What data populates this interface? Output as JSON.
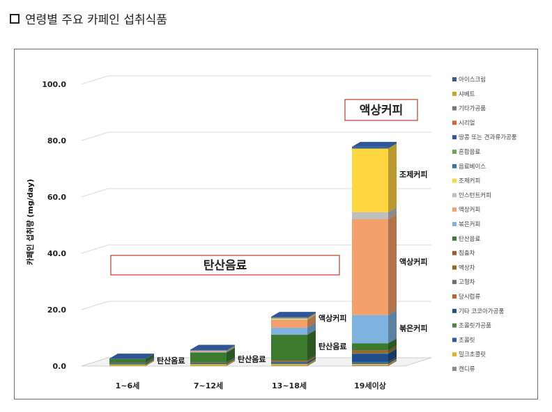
{
  "heading": {
    "text": "연령별 주요 카페인 섭취식품"
  },
  "chart_data": {
    "type": "bar",
    "stacked": true,
    "style": "3d-column",
    "ylabel": "카페인 섭취량 (mg/day)",
    "xlabel": "",
    "ylim": [
      0,
      100
    ],
    "yticks": [
      "0.0",
      "20.0",
      "40.0",
      "60.0",
      "80.0",
      "100.0"
    ],
    "grid": true,
    "legend_position": "right",
    "categories": [
      "1~6세",
      "7~12세",
      "13~18세",
      "19세이상"
    ],
    "series": [
      {
        "name": "캔디류",
        "color": "#8c8c8c",
        "values": [
          0.1,
          0.1,
          0.2,
          0.3
        ]
      },
      {
        "name": "밀크초콜릿",
        "color": "#e3b422",
        "values": [
          0.5,
          0.6,
          0.6,
          0.5
        ]
      },
      {
        "name": "초콜릿",
        "color": "#2a56a8",
        "values": [
          0.3,
          0.3,
          0.5,
          0.5
        ]
      },
      {
        "name": "초콜릿가공품",
        "color": "#4f8a3b",
        "values": [
          0.1,
          0.1,
          0.1,
          0.1
        ]
      },
      {
        "name": "기타 코코아가공품",
        "color": "#1f4e8c",
        "values": [
          0.1,
          0.1,
          0.1,
          3.0
        ]
      },
      {
        "name": "당시럽류",
        "color": "#c0622d",
        "values": [
          0,
          0,
          0,
          0
        ]
      },
      {
        "name": "고형차",
        "color": "#6e6e6e",
        "values": [
          0,
          0,
          0.1,
          0.2
        ]
      },
      {
        "name": "액상차",
        "color": "#8c6b1a",
        "values": [
          0,
          0,
          0.2,
          0.5
        ]
      },
      {
        "name": "침출차",
        "color": "#9d5a2b",
        "values": [
          0.1,
          0.1,
          0.3,
          0.5
        ]
      },
      {
        "name": "탄산음료",
        "color": "#3c7a2e",
        "values": [
          1.3,
          3.5,
          9.0,
          2.5
        ]
      },
      {
        "name": "볶은커피",
        "color": "#7fb3df",
        "values": [
          0,
          0.3,
          2.5,
          10.0
        ]
      },
      {
        "name": "액상커피",
        "color": "#f4a06a",
        "values": [
          0,
          0.4,
          2.8,
          34.0
        ]
      },
      {
        "name": "인스턴트커피",
        "color": "#bfbfbf",
        "values": [
          0,
          0,
          0.2,
          2.5
        ]
      },
      {
        "name": "조제커피",
        "color": "#ffd540",
        "values": [
          0,
          0,
          0.3,
          22.5
        ]
      },
      {
        "name": "음료베이스",
        "color": "#3a6fb0",
        "values": [
          0,
          0.1,
          0.1,
          0.1
        ]
      },
      {
        "name": "혼합음료",
        "color": "#6aa84f",
        "values": [
          0,
          0,
          0.1,
          0.1
        ]
      },
      {
        "name": "땅콩 또는 견과류가공품",
        "color": "#2f5597",
        "values": [
          0,
          0,
          0,
          0
        ]
      },
      {
        "name": "시리얼",
        "color": "#d9622b",
        "values": [
          0,
          0,
          0,
          0
        ]
      },
      {
        "name": "기타가공품",
        "color": "#777777",
        "values": [
          0,
          0,
          0.1,
          0.1
        ]
      },
      {
        "name": "샤베트",
        "color": "#c9a227",
        "values": [
          0,
          0,
          0,
          0
        ]
      },
      {
        "name": "아이스크림",
        "color": "#34588f",
        "values": [
          0.2,
          0.2,
          0.3,
          0.4
        ]
      }
    ],
    "legend_order": [
      "아이스크림",
      "샤베트",
      "기타가공품",
      "시리얼",
      "땅콩 또는 견과류가공품",
      "혼합음료",
      "음료베이스",
      "조제커피",
      "인스턴트커피",
      "액상커피",
      "볶은커피",
      "탄산음료",
      "침출차",
      "액상차",
      "고형차",
      "당시럽류",
      "기타 코코아가공품",
      "초콜릿가공품",
      "초콜릿",
      "밀크초콜릿",
      "캔디류"
    ],
    "annotations": [
      {
        "category": "1~6세",
        "text": "탄산음료",
        "value": 2.0
      },
      {
        "category": "7~12세",
        "text": "탄산음료",
        "value": 2.5
      },
      {
        "category": "13~18세",
        "text": "탄산음료",
        "value": 7.0
      },
      {
        "category": "13~18세",
        "text": "액상커피",
        "value": 17.0
      },
      {
        "category": "19세이상",
        "text": "볶은커피",
        "value": 13.5
      },
      {
        "category": "19세이상",
        "text": "액상커피",
        "value": 37.0
      },
      {
        "category": "19세이상",
        "text": "조제커피",
        "value": 68.0
      }
    ],
    "callouts": {
      "left": "탄산음료",
      "top": "액상커피"
    },
    "colors": {
      "bar_top_cap": "#2f5597",
      "callout_border": "#c0392b",
      "grid": "#d9d9d9"
    }
  }
}
